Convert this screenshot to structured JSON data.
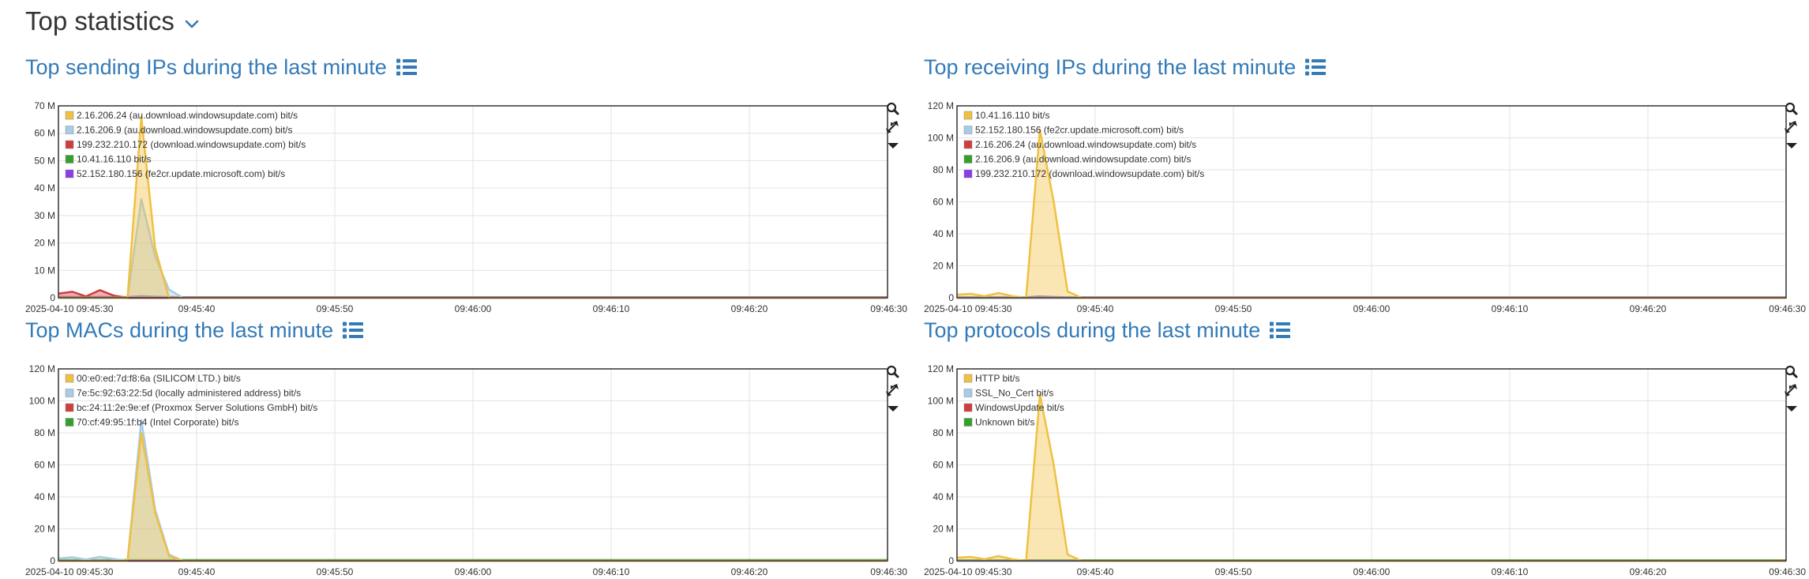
{
  "header": {
    "title": "Top statistics"
  },
  "tools": [
    "search-icon",
    "compress-icon",
    "dropdown-icon"
  ],
  "panels": [
    {
      "id": "sending",
      "title": "Top sending IPs during the last minute",
      "chart_data": {
        "type": "area",
        "x": [
          "09:45:30",
          "09:45:31",
          "09:45:32",
          "09:45:33",
          "09:45:34",
          "09:45:35",
          "09:45:36",
          "09:45:37",
          "09:45:38",
          "09:45:39",
          "09:45:40",
          "09:46:30"
        ],
        "x_tick_labels": [
          "2025-04-10 09:45:30",
          "09:45:40",
          "09:45:50",
          "09:46:00",
          "09:46:10",
          "09:46:20",
          "09:46:30"
        ],
        "y_tick_labels": [
          "0",
          "10 M",
          "20 M",
          "30 M",
          "40 M",
          "50 M",
          "60 M",
          "70 M"
        ],
        "ylim": [
          0,
          70000000
        ],
        "series": [
          {
            "name": "2.16.206.24 (au.download.windowsupdate.com) bit/s",
            "color": "#f0c040",
            "values": [
              0,
              0,
              0,
              0,
              0,
              0,
              66000000,
              18000000,
              0,
              0,
              0,
              0
            ]
          },
          {
            "name": "2.16.206.9 (au.download.windowsupdate.com) bit/s",
            "color": "#a8cbe8",
            "values": [
              0,
              0,
              0,
              0,
              0,
              0,
              36000000,
              15000000,
              3000000,
              0,
              0,
              0
            ]
          },
          {
            "name": "199.232.210.172 (download.windowsupdate.com) bit/s",
            "color": "#d13c3c",
            "values": [
              1500000,
              2200000,
              500000,
              2800000,
              800000,
              0,
              0,
              0,
              0,
              0,
              0,
              0
            ]
          },
          {
            "name": "10.41.16.110 bit/s",
            "color": "#33a02c",
            "values": [
              0,
              0,
              0,
              0,
              0,
              0,
              0,
              0,
              0,
              0,
              0,
              0
            ]
          },
          {
            "name": "52.152.180.156 (fe2cr.update.microsoft.com) bit/s",
            "color": "#8c3ce8",
            "values": [
              300000,
              300000,
              200000,
              300000,
              200000,
              300000,
              600000,
              400000,
              300000,
              200000,
              200000,
              200000
            ]
          }
        ]
      }
    },
    {
      "id": "receiving",
      "title": "Top receiving IPs during the last minute",
      "chart_data": {
        "type": "area",
        "x": [
          "09:45:30",
          "09:45:31",
          "09:45:32",
          "09:45:33",
          "09:45:34",
          "09:45:35",
          "09:45:36",
          "09:45:37",
          "09:45:38",
          "09:45:39",
          "09:45:40",
          "09:46:30"
        ],
        "x_tick_labels": [
          "2025-04-10 09:45:30",
          "09:45:40",
          "09:45:50",
          "09:46:00",
          "09:46:10",
          "09:46:20",
          "09:46:30"
        ],
        "y_tick_labels": [
          "0",
          "20 M",
          "40 M",
          "60 M",
          "80 M",
          "100 M",
          "120 M"
        ],
        "ylim": [
          0,
          120000000
        ],
        "series": [
          {
            "name": "10.41.16.110 bit/s",
            "color": "#f0c040",
            "values": [
              2000000,
              2500000,
              1000000,
              3000000,
              1000000,
              0,
              105000000,
              60000000,
              4000000,
              0,
              0,
              0
            ]
          },
          {
            "name": "52.152.180.156 (fe2cr.update.microsoft.com) bit/s",
            "color": "#a8cbe8",
            "values": [
              0,
              0,
              0,
              0,
              0,
              0,
              0,
              0,
              0,
              0,
              0,
              0
            ]
          },
          {
            "name": "2.16.206.24 (au.download.windowsupdate.com) bit/s",
            "color": "#d13c3c",
            "values": [
              0,
              0,
              0,
              0,
              0,
              0,
              0,
              0,
              0,
              0,
              0,
              0
            ]
          },
          {
            "name": "2.16.206.9 (au.download.windowsupdate.com) bit/s",
            "color": "#33a02c",
            "values": [
              0,
              0,
              0,
              0,
              0,
              0,
              0,
              0,
              0,
              0,
              0,
              0
            ]
          },
          {
            "name": "199.232.210.172 (download.windowsupdate.com) bit/s",
            "color": "#8c3ce8",
            "values": [
              300000,
              300000,
              300000,
              300000,
              300000,
              300000,
              800000,
              500000,
              300000,
              300000,
              300000,
              300000
            ]
          }
        ]
      }
    },
    {
      "id": "macs",
      "title": "Top MACs during the last minute",
      "chart_data": {
        "type": "area",
        "x": [
          "09:45:30",
          "09:45:31",
          "09:45:32",
          "09:45:33",
          "09:45:34",
          "09:45:35",
          "09:45:36",
          "09:45:37",
          "09:45:38",
          "09:45:39",
          "09:45:40",
          "09:46:30"
        ],
        "x_tick_labels": [
          "2025-04-10 09:45:30",
          "09:45:40",
          "09:45:50",
          "09:46:00",
          "09:46:10",
          "09:46:20",
          "09:46:30"
        ],
        "y_tick_labels": [
          "0",
          "20 M",
          "40 M",
          "60 M",
          "80 M",
          "100 M",
          "120 M"
        ],
        "ylim": [
          0,
          120000000
        ],
        "series": [
          {
            "name": "00:e0:ed:7d:f8:6a (SILICOM LTD.) bit/s",
            "color": "#f0c040",
            "values": [
              0,
              0,
              0,
              0,
              0,
              0,
              80000000,
              30000000,
              3000000,
              0,
              0,
              0
            ]
          },
          {
            "name": "7e:5c:92:63:22:5d (locally administered address) bit/s",
            "color": "#a8cbe8",
            "values": [
              1500000,
              2200000,
              800000,
              2500000,
              1200000,
              0,
              88000000,
              32000000,
              4000000,
              0,
              0,
              0
            ]
          },
          {
            "name": "bc:24:11:2e:9e:ef (Proxmox Server Solutions GmbH) bit/s",
            "color": "#d13c3c",
            "values": [
              0,
              0,
              0,
              0,
              0,
              0,
              0,
              0,
              0,
              0,
              0,
              0
            ]
          },
          {
            "name": "70:cf:49:95:1f:b4 (Intel Corporate) bit/s",
            "color": "#33a02c",
            "values": [
              500000,
              500000,
              500000,
              500000,
              500000,
              500000,
              500000,
              500000,
              500000,
              500000,
              500000,
              500000
            ]
          }
        ]
      }
    },
    {
      "id": "protocols",
      "title": "Top protocols during the last minute",
      "chart_data": {
        "type": "area",
        "x": [
          "09:45:30",
          "09:45:31",
          "09:45:32",
          "09:45:33",
          "09:45:34",
          "09:45:35",
          "09:45:36",
          "09:45:37",
          "09:45:38",
          "09:45:39",
          "09:45:40",
          "09:46:30"
        ],
        "x_tick_labels": [
          "2025-04-10 09:45:30",
          "09:45:40",
          "09:45:50",
          "09:46:00",
          "09:46:10",
          "09:46:20",
          "09:46:30"
        ],
        "y_tick_labels": [
          "0",
          "20 M",
          "40 M",
          "60 M",
          "80 M",
          "100 M",
          "120 M"
        ],
        "ylim": [
          0,
          120000000
        ],
        "series": [
          {
            "name": "HTTP bit/s",
            "color": "#f0c040",
            "values": [
              2000000,
              2500000,
              1000000,
              3000000,
              1000000,
              0,
              104000000,
              60000000,
              4000000,
              0,
              0,
              0
            ]
          },
          {
            "name": "SSL_No_Cert bit/s",
            "color": "#a8cbe8",
            "values": [
              0,
              0,
              0,
              0,
              0,
              0,
              0,
              0,
              0,
              0,
              0,
              0
            ]
          },
          {
            "name": "WindowsUpdate bit/s",
            "color": "#d13c3c",
            "values": [
              0,
              0,
              0,
              0,
              0,
              0,
              0,
              0,
              0,
              0,
              0,
              0
            ]
          },
          {
            "name": "Unknown bit/s",
            "color": "#33a02c",
            "values": [
              400000,
              400000,
              400000,
              400000,
              400000,
              400000,
              400000,
              400000,
              400000,
              400000,
              400000,
              400000
            ]
          }
        ]
      }
    }
  ]
}
